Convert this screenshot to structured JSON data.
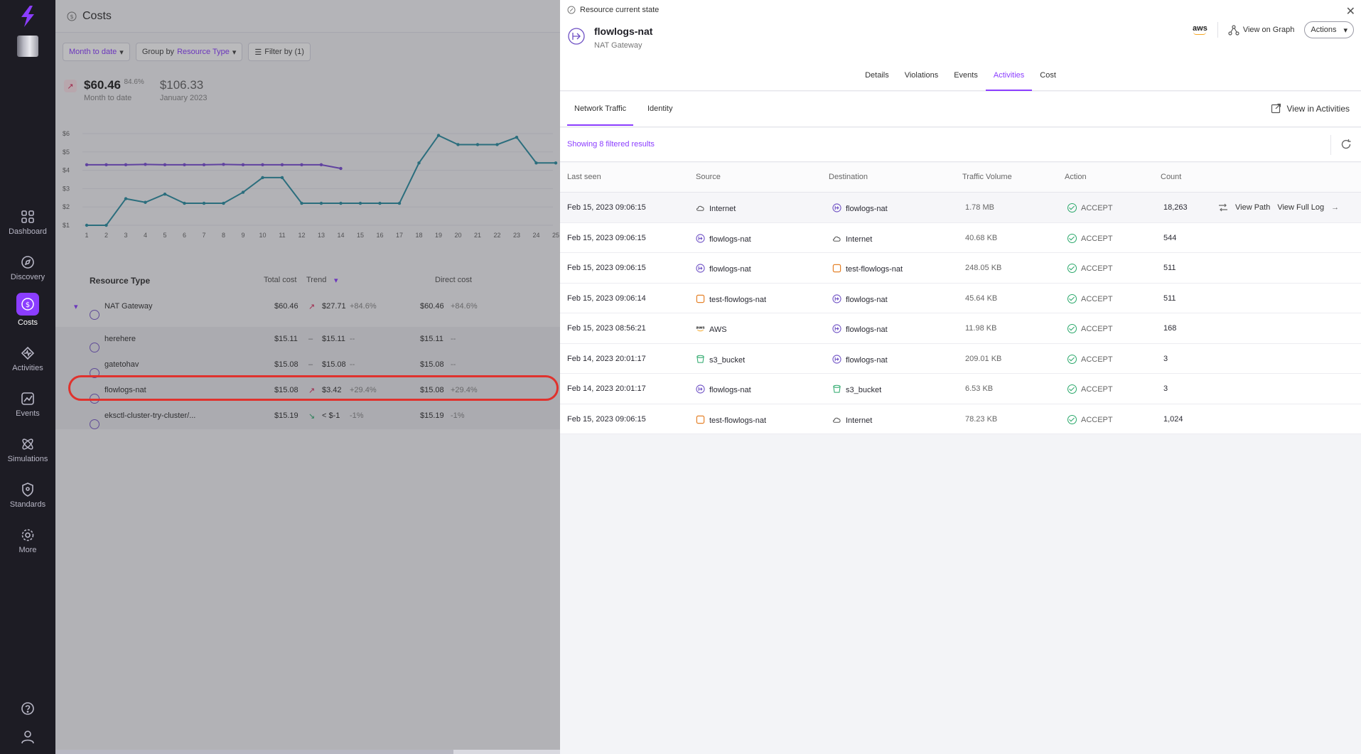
{
  "nav": {
    "items": [
      {
        "label": "Dashboard",
        "icon": "grid-icon"
      },
      {
        "label": "Discovery",
        "icon": "compass-icon"
      },
      {
        "label": "Costs",
        "icon": "dollar-icon"
      },
      {
        "label": "Activities",
        "icon": "activity-icon"
      },
      {
        "label": "Events",
        "icon": "events-icon"
      },
      {
        "label": "Simulations",
        "icon": "atom-icon"
      },
      {
        "label": "Standards",
        "icon": "shield-icon"
      },
      {
        "label": "More",
        "icon": "gear-icon"
      }
    ]
  },
  "costs": {
    "title": "Costs",
    "filters": {
      "period": "Month to date",
      "group_prefix": "Group by",
      "group_value": "Resource Type",
      "filter": "Filter by (1)"
    },
    "kpi": {
      "value": "$60.46",
      "pct": "84.6%",
      "sub": "Month to date",
      "value2": "$106.33",
      "sub2": "January 2023"
    },
    "chart": {
      "y_ticks": [
        "$6",
        "$5",
        "$4",
        "$3",
        "$2",
        "$1"
      ],
      "x_ticks": [
        "1",
        "2",
        "3",
        "4",
        "5",
        "6",
        "7",
        "8",
        "9",
        "10",
        "11",
        "12",
        "13",
        "14",
        "15",
        "16",
        "17",
        "18",
        "19",
        "20",
        "21",
        "22",
        "23",
        "24",
        "25"
      ]
    },
    "table": {
      "headers": {
        "type": "Resource Type",
        "total": "Total cost",
        "trend": "Trend",
        "direct": "Direct cost"
      },
      "rows": [
        {
          "name": "NAT Gateway",
          "total": "$60.46",
          "trend": "$27.71",
          "trend_pct": "+84.6%",
          "direct": "$60.46",
          "direct_pct": "+84.6%"
        },
        {
          "name": "herehere",
          "total": "$15.11",
          "trend": "$15.11",
          "trend_pct": "--",
          "direct": "$15.11",
          "direct_pct": "--"
        },
        {
          "name": "gatetohav",
          "total": "$15.08",
          "trend": "$15.08",
          "trend_pct": "--",
          "direct": "$15.08",
          "direct_pct": "--"
        },
        {
          "name": "flowlogs-nat",
          "total": "$15.08",
          "trend": "$3.42",
          "trend_pct": "+29.4%",
          "direct": "$15.08",
          "direct_pct": "+29.4%"
        },
        {
          "name": "eksctl-cluster-try-cluster/...",
          "total": "$15.19",
          "trend": "< $-1",
          "trend_pct": "-1%",
          "direct": "$15.19",
          "direct_pct": "-1%"
        }
      ]
    }
  },
  "drawer": {
    "heading": "Resource current state",
    "resource_name": "flowlogs-nat",
    "resource_type": "NAT Gateway",
    "provider": "aws",
    "view_on_graph": "View on Graph",
    "actions": "Actions",
    "tabs": [
      "Details",
      "Violations",
      "Events",
      "Activities",
      "Cost"
    ],
    "active_tab": "Activities",
    "sub_tabs": [
      "Network Traffic",
      "Identity"
    ],
    "view_in_activities": "View in Activities",
    "showing": "Showing 8 filtered results",
    "table": {
      "headers": {
        "last_seen": "Last seen",
        "source": "Source",
        "destination": "Destination",
        "volume": "Traffic Volume",
        "action": "Action",
        "count": "Count"
      },
      "rows": [
        {
          "last_seen": "Feb 15, 2023 09:06:15",
          "source": "Internet",
          "source_icon": "cloud-icon",
          "destination": "flowlogs-nat",
          "dest_icon": "nat-gateway-icon",
          "volume": "1.78 MB",
          "action": "ACCEPT",
          "count": "18,263"
        },
        {
          "last_seen": "Feb 15, 2023 09:06:15",
          "source": "flowlogs-nat",
          "source_icon": "nat-gateway-icon",
          "destination": "Internet",
          "dest_icon": "cloud-icon",
          "volume": "40.68 KB",
          "action": "ACCEPT",
          "count": "544"
        },
        {
          "last_seen": "Feb 15, 2023 09:06:15",
          "source": "flowlogs-nat",
          "source_icon": "nat-gateway-icon",
          "destination": "test-flowlogs-nat",
          "dest_icon": "instance-icon",
          "volume": "248.05 KB",
          "action": "ACCEPT",
          "count": "511"
        },
        {
          "last_seen": "Feb 15, 2023 09:06:14",
          "source": "test-flowlogs-nat",
          "source_icon": "instance-icon",
          "destination": "flowlogs-nat",
          "dest_icon": "nat-gateway-icon",
          "volume": "45.64 KB",
          "action": "ACCEPT",
          "count": "511"
        },
        {
          "last_seen": "Feb 15, 2023 08:56:21",
          "source": "AWS",
          "source_icon": "aws-icon",
          "destination": "flowlogs-nat",
          "dest_icon": "nat-gateway-icon",
          "volume": "11.98 KB",
          "action": "ACCEPT",
          "count": "168"
        },
        {
          "last_seen": "Feb 14, 2023 20:01:17",
          "source": "s3_bucket",
          "source_icon": "bucket-icon",
          "destination": "flowlogs-nat",
          "dest_icon": "nat-gateway-icon",
          "volume": "209.01 KB",
          "action": "ACCEPT",
          "count": "3"
        },
        {
          "last_seen": "Feb 14, 2023 20:01:17",
          "source": "flowlogs-nat",
          "source_icon": "nat-gateway-icon",
          "destination": "s3_bucket",
          "dest_icon": "bucket-icon",
          "volume": "6.53 KB",
          "action": "ACCEPT",
          "count": "3"
        },
        {
          "last_seen": "Feb 15, 2023 09:06:15",
          "source": "test-flowlogs-nat",
          "source_icon": "instance-icon",
          "destination": "Internet",
          "dest_icon": "cloud-icon",
          "volume": "78.23 KB",
          "action": "ACCEPT",
          "count": "1,024"
        }
      ],
      "row_actions": {
        "view_path": "View Path",
        "view_full_log": "View Full Log"
      }
    }
  },
  "colors": {
    "accent": "#8b3dff",
    "nav_bg": "#1d1c24",
    "accept": "#2aa86a",
    "highlight": "#e0322d"
  }
}
